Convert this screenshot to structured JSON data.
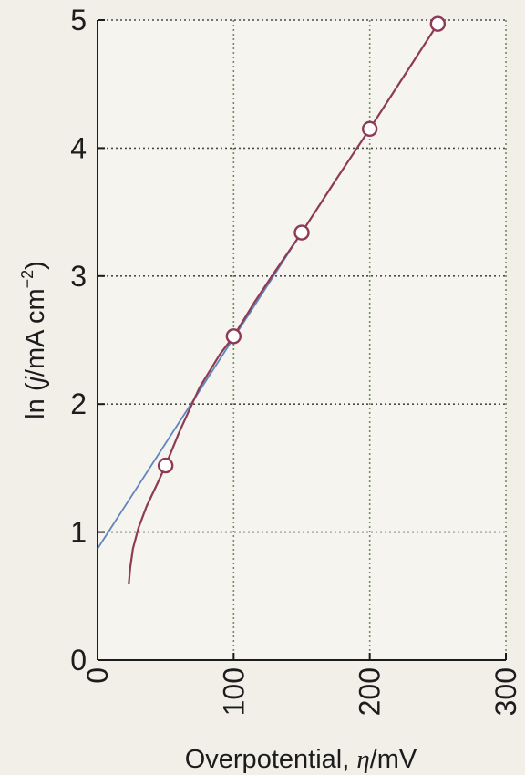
{
  "chart_data": {
    "type": "line",
    "title": "",
    "xlabel": {
      "prefix": "Overpotential, ",
      "symbol": "η",
      "suffix": "/mV"
    },
    "ylabel": {
      "prefix": "ln (",
      "symbol": "j",
      "suffix": "/mA cm",
      "sup": "−2",
      "close": ")"
    },
    "xlim": [
      0,
      300
    ],
    "ylim": [
      0,
      5
    ],
    "x_ticks": [
      0,
      100,
      200,
      300
    ],
    "y_ticks": [
      0,
      1,
      2,
      3,
      4,
      5
    ],
    "grid": true,
    "series": [
      {
        "kind": "markers",
        "x": [
          50,
          100,
          150,
          200,
          250
        ],
        "y": [
          1.52,
          2.53,
          3.34,
          4.15,
          4.97
        ]
      },
      {
        "kind": "curve",
        "x": [
          23,
          24,
          26,
          30,
          36,
          44,
          50,
          60,
          75,
          90,
          100,
          115,
          130,
          150,
          175,
          200,
          225,
          250
        ],
        "y": [
          0.6,
          0.72,
          0.87,
          1.03,
          1.2,
          1.38,
          1.52,
          1.78,
          2.13,
          2.39,
          2.53,
          2.79,
          3.03,
          3.34,
          3.75,
          4.15,
          4.56,
          4.97
        ]
      },
      {
        "kind": "fit",
        "x": [
          0,
          150
        ],
        "y": [
          0.87,
          3.34
        ]
      }
    ],
    "colors": {
      "marker": "#8e3a55",
      "curve": "#8e3a55",
      "fit": "#5f86bd",
      "grid": "#6f8f5c",
      "axis": "#1c1c1c",
      "background": "#f1efe8"
    }
  }
}
